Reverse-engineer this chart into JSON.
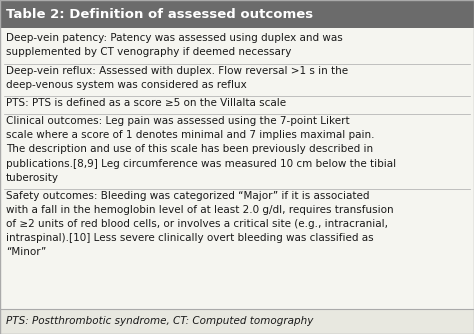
{
  "title": "Table 2: Definition of assessed outcomes",
  "title_bg": "#6b6b6b",
  "title_color": "#ffffff",
  "title_fontsize": 9.5,
  "body_bg": "#f5f5f0",
  "footer_bg": "#e8e8e0",
  "text_color": "#1a1a1a",
  "body_fontsize": 7.5,
  "footer_fontsize": 7.5,
  "rows": [
    "Deep-vein patency: Patency was assessed using duplex and was\nsupplemented by CT venography if deemed necessary",
    "Deep-vein reflux: Assessed with duplex. Flow reversal >1 s in the\ndeep-venous system was considered as reflux",
    "PTS: PTS is defined as a score ≥5 on the Villalta scale",
    "Clinical outcomes: Leg pain was assessed using the 7-point Likert\nscale where a score of 1 denotes minimal and 7 implies maximal pain.\nThe description and use of this scale has been previously described in\npublications.[8,9] Leg circumference was measured 10 cm below the tibial\ntuberosity",
    "Safety outcomes: Bleeding was categorized “Major” if it is associated\nwith a fall in the hemoglobin level of at least 2.0 g/dl, requires transfusion\nof ≥2 units of red blood cells, or involves a critical site (e.g., intracranial,\nintraspinal).[10] Less severe clinically overt bleeding was classified as\n“Minor”"
  ],
  "footer": "PTS: Postthrombotic syndrome, CT: Computed tomography",
  "line_color": "#aaaaaa",
  "fig_width": 4.74,
  "fig_height": 3.34,
  "dpi": 100
}
